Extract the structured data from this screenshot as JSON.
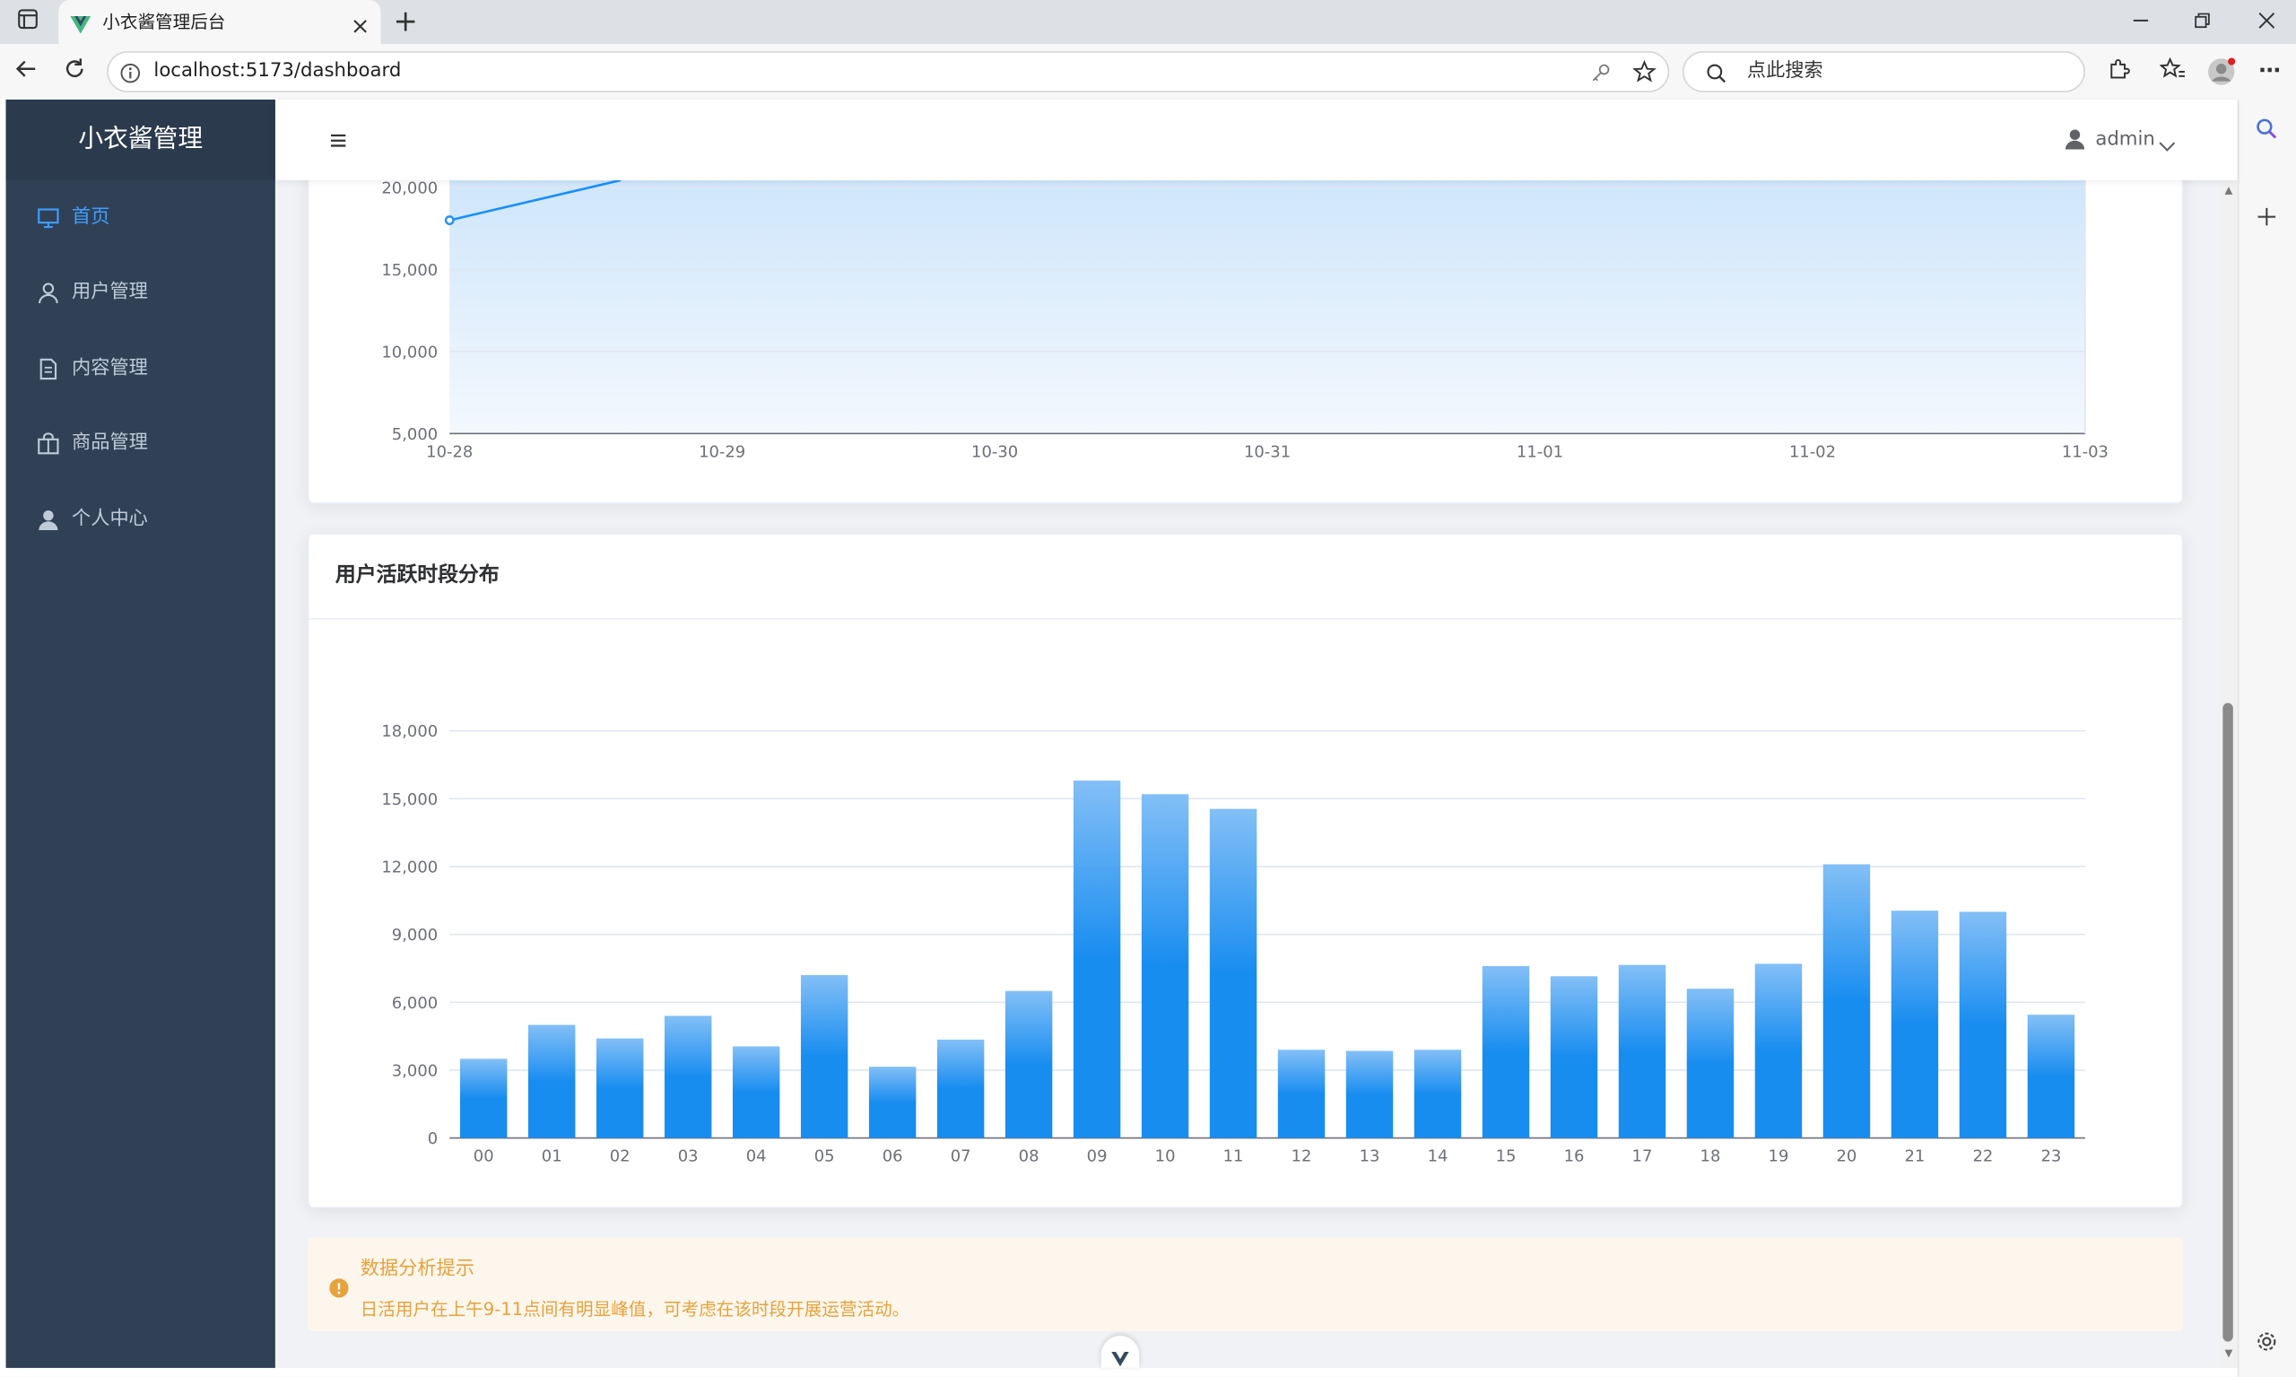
{
  "browser": {
    "tab_title": "小衣酱管理后台",
    "url": "localhost:5173/dashboard",
    "search_placeholder": "点此搜索"
  },
  "app": {
    "logo_text": "小衣酱管理",
    "user_name": "admin"
  },
  "sidebar": {
    "items": [
      {
        "label": "首页",
        "icon": "monitor-icon",
        "active": true
      },
      {
        "label": "用户管理",
        "icon": "user-icon",
        "active": false
      },
      {
        "label": "内容管理",
        "icon": "document-icon",
        "active": false
      },
      {
        "label": "商品管理",
        "icon": "goods-icon",
        "active": false
      },
      {
        "label": "个人中心",
        "icon": "avatar-icon",
        "active": false
      }
    ]
  },
  "colors": {
    "sidebar_bg": "#304156",
    "active": "#409eff",
    "bar": "#1890ff",
    "line": "#1890ff",
    "warning": "#e6a23c"
  },
  "trend_chart": {
    "chart_data": {
      "type": "area",
      "x": [
        "10-28",
        "10-29",
        "10-30",
        "10-31",
        "11-01",
        "11-02",
        "11-03"
      ],
      "visible_points": [
        {
          "x": "10-28",
          "y": 18000
        }
      ],
      "yticks": [
        "20,000",
        "15,000",
        "10,000",
        "5,000"
      ],
      "ylim_visible": [
        5000,
        20500
      ]
    }
  },
  "hour_chart": {
    "title": "用户活跃时段分布",
    "chart_data": {
      "type": "bar",
      "categories": [
        "00",
        "01",
        "02",
        "03",
        "04",
        "05",
        "06",
        "07",
        "08",
        "09",
        "10",
        "11",
        "12",
        "13",
        "14",
        "15",
        "16",
        "17",
        "18",
        "19",
        "20",
        "21",
        "22",
        "23"
      ],
      "values": [
        3500,
        5000,
        4400,
        5400,
        4050,
        7200,
        3150,
        4350,
        6500,
        15800,
        15200,
        14550,
        3900,
        3850,
        3900,
        7600,
        7150,
        7650,
        6600,
        7700,
        12100,
        10050,
        10000,
        5450
      ],
      "yticks": [
        "0",
        "3,000",
        "6,000",
        "9,000",
        "12,000",
        "15,000",
        "18,000"
      ],
      "ylim": [
        0,
        18000
      ],
      "grid": true
    }
  },
  "alert": {
    "title": "数据分析提示",
    "message": "日活用户在上午9-11点间有明显峰值，可考虑在该时段开展运营活动。"
  }
}
